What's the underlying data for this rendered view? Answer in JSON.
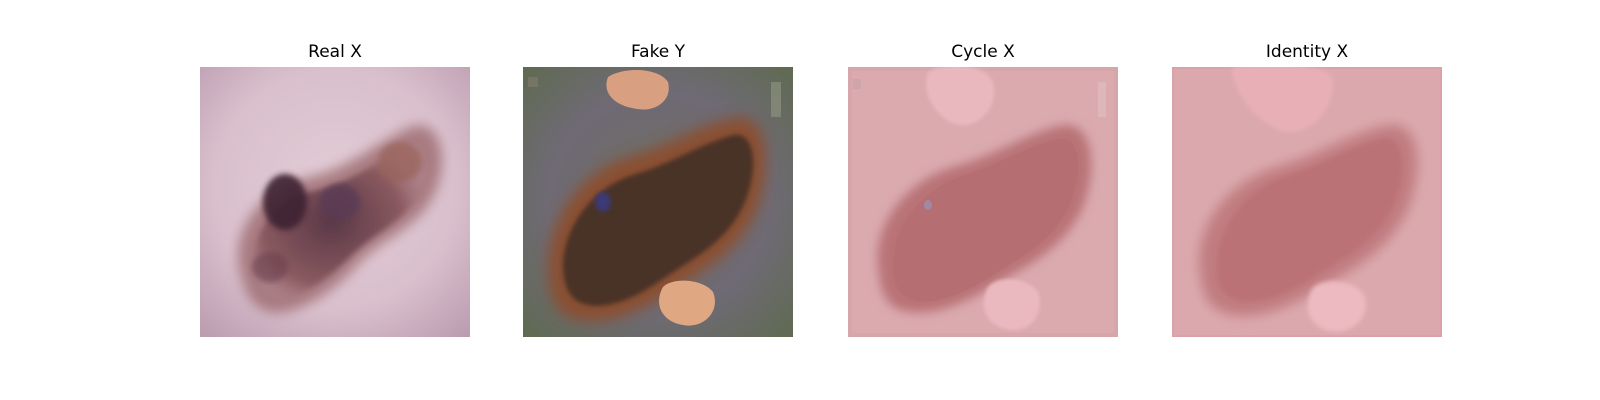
{
  "figure": {
    "panels": [
      {
        "title": "Real X",
        "image_semantic": "dermoscopy-skin-lesion-original"
      },
      {
        "title": "Fake Y",
        "image_semantic": "generated-lesion-translation"
      },
      {
        "title": "Cycle X",
        "image_semantic": "cycle-reconstructed-lesion"
      },
      {
        "title": "Identity X",
        "image_semantic": "identity-mapped-lesion"
      }
    ]
  }
}
